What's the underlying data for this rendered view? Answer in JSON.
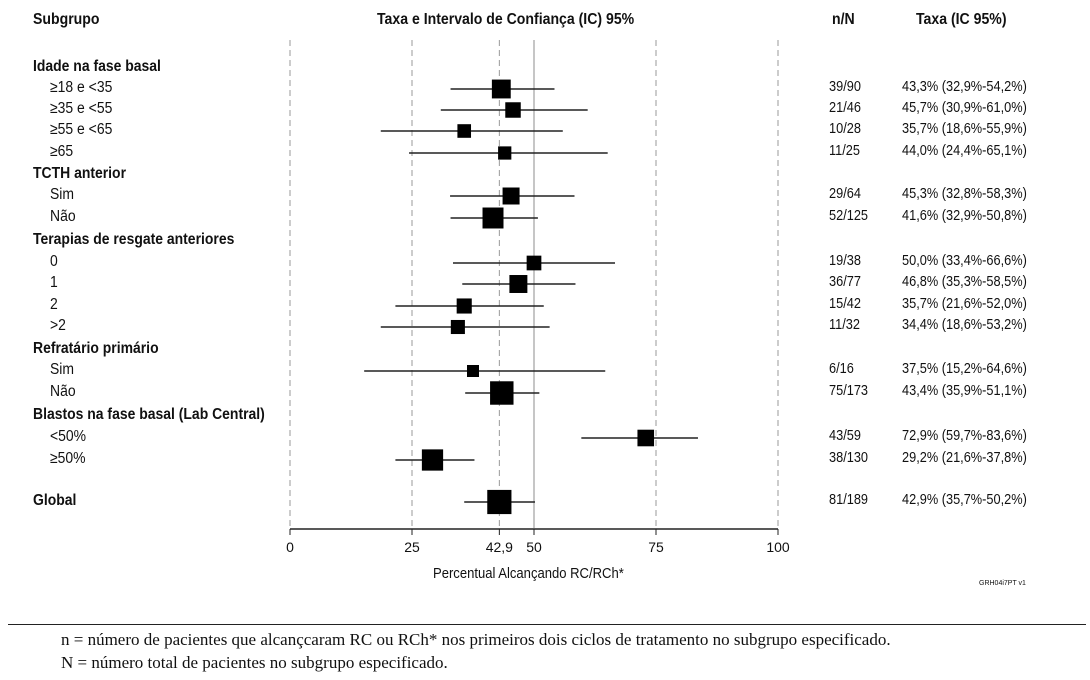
{
  "headers": {
    "subgroup": "Subgrupo",
    "plot": "Taxa e Intervalo de Confiança (IC) 95%",
    "nN": "n/N",
    "rate": "Taxa (IC 95%)"
  },
  "chart_data": {
    "type": "forest",
    "x_axis": {
      "range": [
        0,
        100
      ],
      "ticks": [
        "0",
        "25",
        "42,9",
        "50",
        "75",
        "100"
      ],
      "tick_values": [
        0,
        25,
        42.9,
        50,
        75,
        100
      ],
      "dashed_reference_lines": [
        0,
        25,
        42.9,
        75,
        100
      ],
      "solid_reference_line": 50,
      "label": "Percentual Alcançando RC/RCh*"
    },
    "rows": [
      {
        "kind": "group",
        "label": "Idade na fase basal"
      },
      {
        "kind": "item",
        "label": "≥18 e <35",
        "nN": "39/90",
        "rate": "43,3% (32,9%-54,2%)",
        "est": 43.3,
        "lo": 32.9,
        "hi": 54.2,
        "n": 90
      },
      {
        "kind": "item",
        "label": "≥35 e <55",
        "nN": "21/46",
        "rate": "45,7% (30,9%-61,0%)",
        "est": 45.7,
        "lo": 30.9,
        "hi": 61.0,
        "n": 46
      },
      {
        "kind": "item",
        "label": "≥55 e <65",
        "nN": "10/28",
        "rate": "35,7% (18,6%-55,9%)",
        "est": 35.7,
        "lo": 18.6,
        "hi": 55.9,
        "n": 28
      },
      {
        "kind": "item",
        "label": "≥65",
        "nN": "11/25",
        "rate": "44,0% (24,4%-65,1%)",
        "est": 44.0,
        "lo": 24.4,
        "hi": 65.1,
        "n": 25
      },
      {
        "kind": "group",
        "label": "TCTH anterior"
      },
      {
        "kind": "item",
        "label": "Sim",
        "nN": "29/64",
        "rate": "45,3% (32,8%-58,3%)",
        "est": 45.3,
        "lo": 32.8,
        "hi": 58.3,
        "n": 64
      },
      {
        "kind": "item",
        "label": "Não",
        "nN": "52/125",
        "rate": "41,6% (32,9%-50,8%)",
        "est": 41.6,
        "lo": 32.9,
        "hi": 50.8,
        "n": 125
      },
      {
        "kind": "group",
        "label": "Terapias de resgate anteriores"
      },
      {
        "kind": "item",
        "label": "0",
        "nN": "19/38",
        "rate": "50,0% (33,4%-66,6%)",
        "est": 50.0,
        "lo": 33.4,
        "hi": 66.6,
        "n": 38
      },
      {
        "kind": "item",
        "label": "1",
        "nN": "36/77",
        "rate": "46,8% (35,3%-58,5%)",
        "est": 46.8,
        "lo": 35.3,
        "hi": 58.5,
        "n": 77
      },
      {
        "kind": "item",
        "label": "2",
        "nN": "15/42",
        "rate": "35,7% (21,6%-52,0%)",
        "est": 35.7,
        "lo": 21.6,
        "hi": 52.0,
        "n": 42
      },
      {
        "kind": "item",
        "label": ">2",
        "nN": "11/32",
        "rate": "34,4% (18,6%-53,2%)",
        "est": 34.4,
        "lo": 18.6,
        "hi": 53.2,
        "n": 32
      },
      {
        "kind": "group",
        "label": "Refratário primário"
      },
      {
        "kind": "item",
        "label": "Sim",
        "nN": "6/16",
        "rate": "37,5% (15,2%-64,6%)",
        "est": 37.5,
        "lo": 15.2,
        "hi": 64.6,
        "n": 16
      },
      {
        "kind": "item",
        "label": "Não",
        "nN": "75/173",
        "rate": "43,4% (35,9%-51,1%)",
        "est": 43.4,
        "lo": 35.9,
        "hi": 51.1,
        "n": 173
      },
      {
        "kind": "group",
        "label": "Blastos na fase basal (Lab Central)"
      },
      {
        "kind": "item",
        "label": "<50%",
        "nN": "43/59",
        "rate": "72,9% (59,7%-83,6%)",
        "est": 72.9,
        "lo": 59.7,
        "hi": 83.6,
        "n": 59
      },
      {
        "kind": "item",
        "label": "≥50%",
        "nN": "38/130",
        "rate": "29,2% (21,6%-37,8%)",
        "est": 29.2,
        "lo": 21.6,
        "hi": 37.8,
        "n": 130
      },
      {
        "kind": "overall",
        "label": "Global",
        "nN": "81/189",
        "rate": "42,9% (35,7%-50,2%)",
        "est": 42.9,
        "lo": 35.7,
        "hi": 50.2,
        "n": 189
      }
    ]
  },
  "figure_code": "GRH04i7PT v1",
  "footnotes": [
    "n = número de pacientes que alcançcaram RC ou RCh* nos primeiros dois ciclos de tratamento no subgrupo especificado.",
    "N = número total de pacientes no subgrupo especificado."
  ]
}
